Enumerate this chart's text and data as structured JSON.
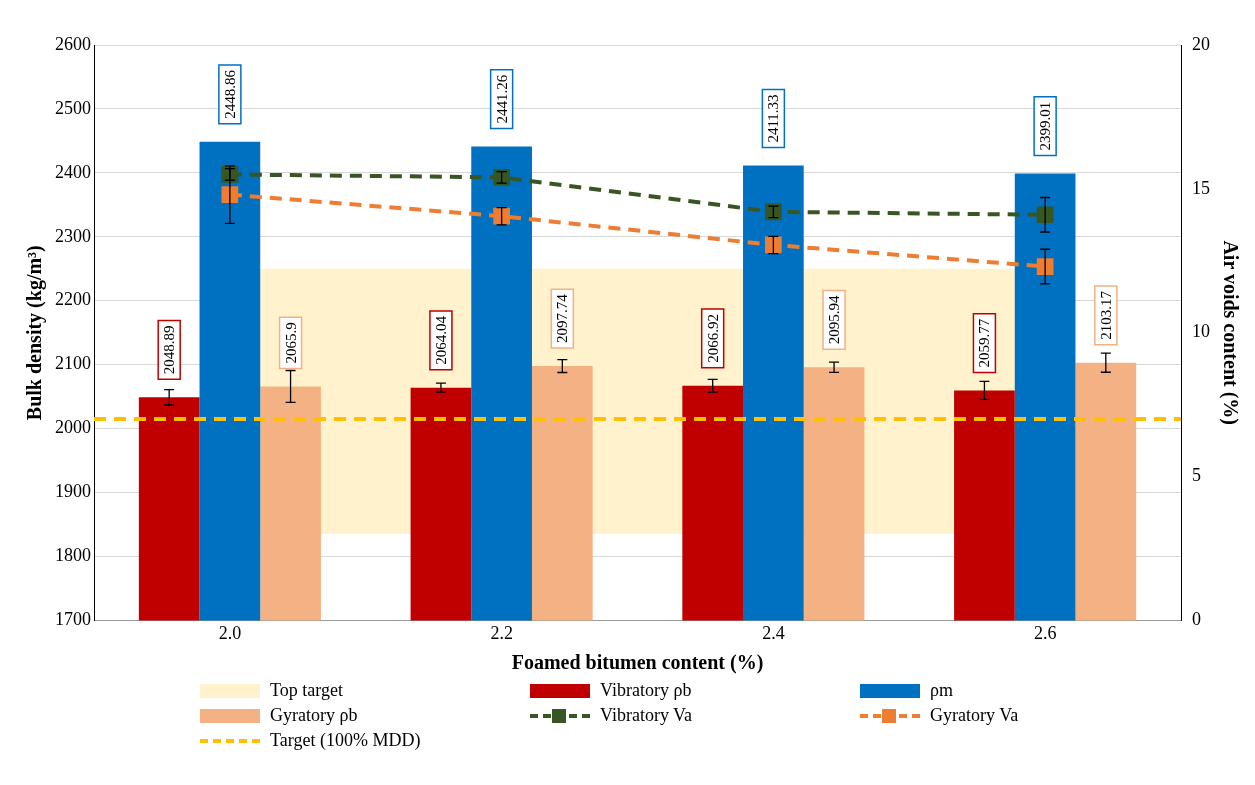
{
  "chart_data": {
    "type": "bar",
    "xlabel": "Foamed bitumen content (%)",
    "ylabel": "Bulk density (kg/m³)",
    "y2label": "Air voids content (%)",
    "categories": [
      "2.0",
      "2.2",
      "2.4",
      "2.6"
    ],
    "series": [
      {
        "name": "Vibratory ρb",
        "color": "#c00000",
        "values": [
          2048.89,
          2064.04,
          2066.92,
          2059.77
        ],
        "value_labels": [
          "2048.89",
          "2064.04",
          "2066.92",
          "2059.77"
        ],
        "errors": [
          12,
          7,
          10,
          14
        ]
      },
      {
        "name": "ρm",
        "color": "#0070c0",
        "values": [
          2448.86,
          2441.26,
          2411.33,
          2399.01
        ],
        "value_labels": [
          "2448.86",
          "2441.26",
          "2411.33",
          "2399.01"
        ]
      },
      {
        "name": "Gyratory ρb",
        "color": "#f4b183",
        "values": [
          2065.9,
          2097.74,
          2095.94,
          2103.17
        ],
        "value_labels": [
          "2065.9",
          "2097.74",
          "2095.94",
          "2103.17"
        ],
        "errors": [
          25,
          10,
          8,
          15
        ]
      },
      {
        "name": "Vibratory Va",
        "type": "line",
        "axis": "y2",
        "color": "#375623",
        "marker": "square",
        "line_style": "dashed",
        "values": [
          15.5,
          15.4,
          14.2,
          14.1
        ],
        "errors": [
          0.2,
          0.2,
          0.2,
          0.6
        ]
      },
      {
        "name": "Gyratory Va",
        "type": "line",
        "axis": "y2",
        "color": "#ed7d31",
        "marker": "square",
        "line_style": "dashed",
        "values": [
          14.8,
          14.05,
          13.05,
          12.3
        ],
        "errors": [
          1.0,
          0.3,
          0.3,
          0.6
        ]
      }
    ],
    "bands": [
      {
        "axis": "y",
        "from": 1835,
        "to": 2250,
        "label": "Top target",
        "color": "#fff2cc"
      }
    ],
    "ref_lines": [
      {
        "axis": "y",
        "value": 2015,
        "label": "Target (100% MDD)",
        "color": "#ffc000",
        "line_style": "dashed"
      }
    ],
    "ylim": [
      1700,
      2600
    ],
    "yticks": [
      1700,
      1800,
      1900,
      2000,
      2100,
      2200,
      2300,
      2400,
      2500,
      2600
    ],
    "y2lim": [
      0,
      20
    ],
    "y2ticks": [
      0,
      5,
      10,
      15,
      20
    ],
    "grid": "y",
    "legend": "bottom"
  }
}
